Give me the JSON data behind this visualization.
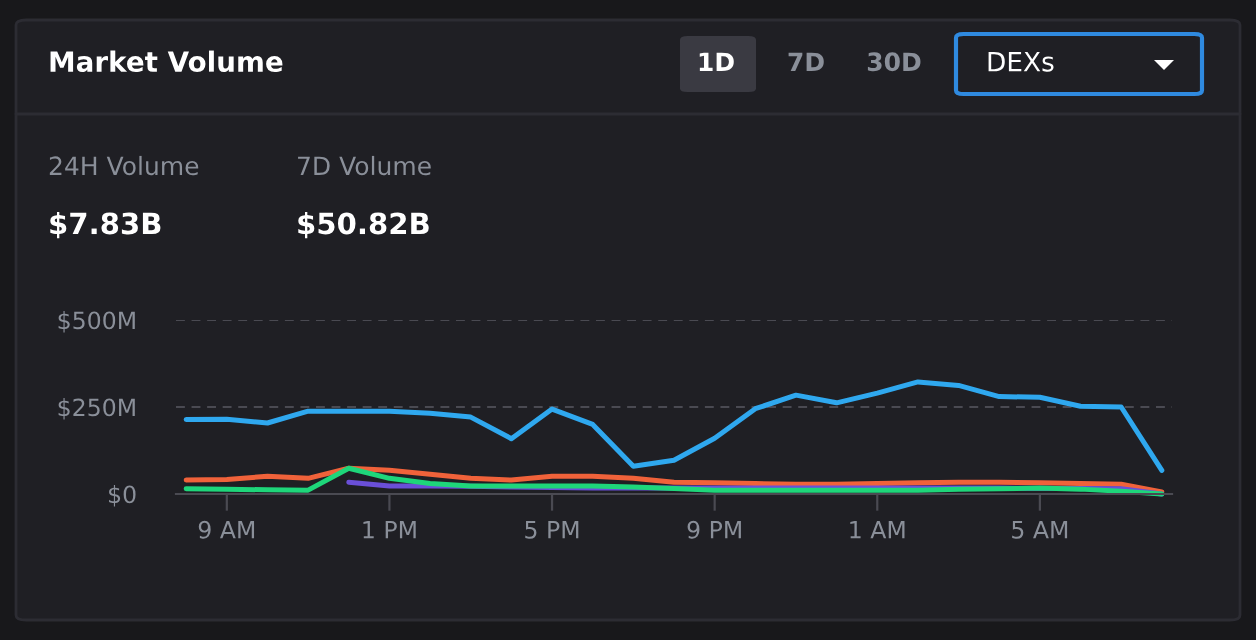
{
  "chart_data": {
    "type": "line",
    "title": "Market Volume",
    "annotations": [
      "1D",
      "7D",
      "30D",
      "DEXs",
      "24H Volume",
      "$7.83B",
      "7D Volume",
      "$50.82B"
    ],
    "categories": [
      null,
      "9 AM",
      null,
      null,
      null,
      "1 PM",
      null,
      null,
      null,
      "5 PM",
      null,
      null,
      null,
      "9 PM",
      null,
      null,
      null,
      "1 AM",
      null,
      null,
      null,
      "5 AM",
      null,
      null,
      null
    ],
    "series": [
      {
        "color": "#2fa8ef",
        "values": [
          214,
          215,
          204,
          238,
          238,
          238,
          232,
          221,
          159,
          244,
          200,
          80,
          97,
          160,
          245,
          284,
          262,
          290,
          322,
          312,
          280,
          278,
          252,
          250,
          68
        ]
      },
      {
        "color": "#f0623a",
        "values": [
          40,
          42,
          51,
          45,
          74,
          68,
          57,
          45,
          40,
          51,
          51,
          45,
          34,
          32,
          30,
          28,
          28,
          30,
          32,
          34,
          34,
          32,
          30,
          28,
          6
        ]
      },
      {
        "color": "#6a4fd8",
        "values": [
          null,
          null,
          null,
          null,
          34,
          23,
          23,
          22,
          20,
          19,
          17,
          17,
          17,
          17,
          17,
          17,
          17,
          17,
          17,
          17,
          17,
          null,
          16,
          15,
          0
        ]
      },
      {
        "color": "#1ed67a",
        "values": [
          15,
          14,
          12,
          11,
          74,
          45,
          30,
          23,
          23,
          23,
          23,
          20,
          16,
          11,
          11,
          11,
          11,
          11,
          11,
          14,
          15,
          17,
          14,
          8,
          0
        ]
      }
    ],
    "ylim": [
      0,
      500
    ],
    "yticks": [
      {
        "value": 0,
        "label": "$0"
      },
      {
        "value": 250,
        "label": "$250M"
      },
      {
        "value": 500,
        "label": "$500M"
      }
    ],
    "grid": "y",
    "legend": false,
    "marker": "none",
    "line_style": "solid"
  }
}
